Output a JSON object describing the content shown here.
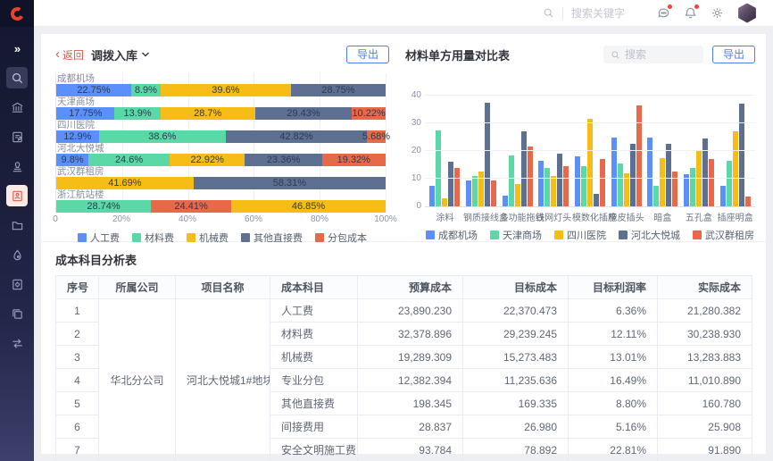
{
  "header": {
    "search_placeholder": "搜索关键字"
  },
  "icons": {
    "sidebar": [
      "expand-icon",
      "search-icon",
      "bank-icon",
      "document-edit-icon",
      "stamp-icon",
      "cost-card-icon",
      "folder-icon",
      "drop-icon",
      "document-gear-icon",
      "window-icon",
      "transfer-icon"
    ],
    "sidebar_active": "cost-card-icon",
    "header": [
      "chat-icon",
      "bell-icon",
      "gear-icon",
      "avatar"
    ]
  },
  "left_panel": {
    "back_label": "返回",
    "title": "调拨入库",
    "export_label": "导出"
  },
  "right_panel": {
    "title": "材料单方用量对比表",
    "search_placeholder": "搜索",
    "export_label": "导出"
  },
  "colors": {
    "blue": "#5B8FF9",
    "green": "#5AD8A6",
    "yellow": "#F6BD16",
    "darkblue": "#5D7092",
    "red": "#E8684A",
    "accent": "#4d7ef2",
    "brand": "#e8432d"
  },
  "chart_data": [
    {
      "type": "bar",
      "variant": "horizontal_stacked_percent",
      "title": "调拨入库",
      "xlim": [
        0,
        100
      ],
      "x_ticks": [
        "0",
        "20%",
        "40%",
        "60%",
        "80%",
        "100%"
      ],
      "grid": true,
      "legend_position": "bottom",
      "legend": [
        {
          "name": "人工费",
          "color": "#5B8FF9"
        },
        {
          "name": "材料费",
          "color": "#5AD8A6"
        },
        {
          "name": "机械费",
          "color": "#F6BD16"
        },
        {
          "name": "其他直接费",
          "color": "#5D7092"
        },
        {
          "name": "分包成本",
          "color": "#E8684A"
        }
      ],
      "bars": [
        {
          "category": "成都机场",
          "segments": [
            {
              "series": "人工费",
              "value": 22.75
            },
            {
              "series": "材料费",
              "value": 8.9
            },
            {
              "series": "机械费",
              "value": 39.6
            },
            {
              "series": "其他直接费",
              "value": 28.75
            }
          ]
        },
        {
          "category": "天津商场",
          "segments": [
            {
              "series": "人工费",
              "value": 17.75
            },
            {
              "series": "材料费",
              "value": 13.9
            },
            {
              "series": "机械费",
              "value": 28.7
            },
            {
              "series": "其他直接费",
              "value": 29.43
            },
            {
              "series": "分包成本",
              "value": 10.22
            }
          ]
        },
        {
          "category": "四川医院",
          "segments": [
            {
              "series": "人工费",
              "value": 12.9
            },
            {
              "series": "材料费",
              "value": 38.6
            },
            {
              "series": "其他直接费",
              "value": 42.82
            },
            {
              "series": "分包成本",
              "value": 5.68
            }
          ]
        },
        {
          "category": "河北大悦城",
          "segments": [
            {
              "series": "人工费",
              "value": 9.8
            },
            {
              "series": "材料费",
              "value": 24.6
            },
            {
              "series": "机械费",
              "value": 22.92
            },
            {
              "series": "其他直接费",
              "value": 23.36
            },
            {
              "series": "分包成本",
              "value": 19.32
            }
          ]
        },
        {
          "category": "武汉群租房",
          "segments": [
            {
              "series": "机械费",
              "value": 41.69
            },
            {
              "series": "其他直接费",
              "value": 58.31
            }
          ]
        },
        {
          "category": "浙江航站楼",
          "segments": [
            {
              "series": "材料费",
              "value": 28.74
            },
            {
              "series": "分包成本",
              "value": 24.41
            },
            {
              "series": "机械费",
              "value": 46.85
            }
          ]
        }
      ]
    },
    {
      "type": "bar",
      "variant": "vertical_grouped",
      "title": "材料单方用量对比表",
      "ylim": [
        0,
        40
      ],
      "y_ticks": [
        0,
        10,
        20,
        30,
        40
      ],
      "grid": true,
      "legend_position": "bottom",
      "categories": [
        "涂料",
        "钢质接线盒",
        "多功能拖线",
        "铁网灯头",
        "模数化插座",
        "橡皮插头",
        "暗盒",
        "五孔盒",
        "插座明盒"
      ],
      "series": [
        {
          "name": "成都机场",
          "color": "#5B8FF9",
          "values": [
            7.5,
            9.5,
            4,
            16.5,
            18,
            25,
            25,
            11.5,
            7.5
          ]
        },
        {
          "name": "天津商场",
          "color": "#5AD8A6",
          "values": [
            27.5,
            11,
            18.5,
            14,
            14.5,
            15.5,
            7.5,
            14,
            16.5
          ]
        },
        {
          "name": "四川医院",
          "color": "#F6BD16",
          "values": [
            3,
            12.5,
            8,
            11,
            31.5,
            12,
            17.5,
            20,
            27
          ]
        },
        {
          "name": "河北大悦城",
          "color": "#5D7092",
          "values": [
            16,
            37.5,
            27,
            19,
            4.5,
            22.5,
            22.5,
            24.5,
            37
          ]
        },
        {
          "name": "武汉群租房",
          "color": "#E8684A",
          "values": [
            14,
            9.5,
            21.5,
            14.5,
            17,
            36.5,
            12.5,
            17,
            3.5
          ]
        }
      ]
    }
  ],
  "table": {
    "title": "成本科目分析表",
    "columns": [
      "序号",
      "所属公司",
      "项目名称",
      "成本科目",
      "预算成本",
      "目标成本",
      "目标利润率",
      "实际成本"
    ],
    "company": "华北分公司",
    "project": "河北大悦城1#地块项目",
    "rows": [
      [
        "1",
        "人工费",
        "23,890.230",
        "22,370.473",
        "6.36%",
        "21,280.382"
      ],
      [
        "2",
        "材料费",
        "32,378.896",
        "29,239.245",
        "12.11%",
        "30,238.930"
      ],
      [
        "3",
        "机械费",
        "19,289.309",
        "15,273.483",
        "13.01%",
        "13,283.883"
      ],
      [
        "4",
        "专业分包",
        "12,382.394",
        "11,235.636",
        "16.49%",
        "11,010.890"
      ],
      [
        "5",
        "其他直接费",
        "198.345",
        "169.335",
        "8.80%",
        "160.780"
      ],
      [
        "6",
        "间接费用",
        "28.837",
        "26.980",
        "5.16%",
        "25.908"
      ],
      [
        "7",
        "安全文明施工费",
        "93.784",
        "78.892",
        "22.81%",
        "91.890"
      ]
    ]
  }
}
